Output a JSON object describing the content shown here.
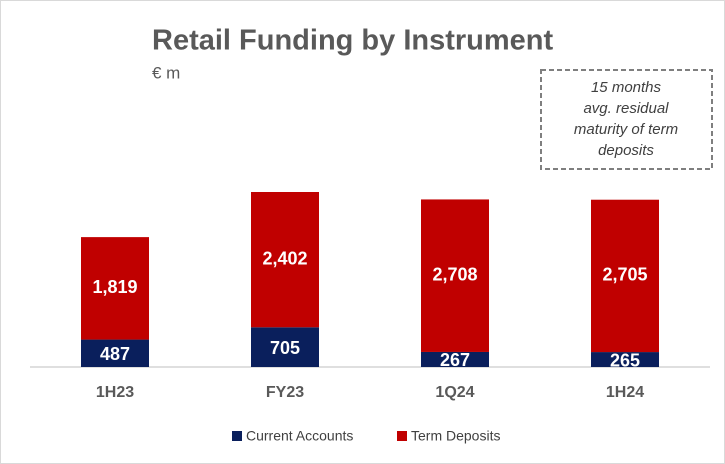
{
  "chart_data": {
    "type": "stacked_bar",
    "title": "Retail Funding by Instrument",
    "subtitle": "€ m",
    "annotation": [
      "15 months",
      "avg. residual",
      "maturity of term",
      "deposits"
    ],
    "categories": [
      "1H23",
      "FY23",
      "1Q24",
      "1H24"
    ],
    "series": [
      {
        "name": "Current Accounts",
        "color": "#0a1f5c",
        "values": [
          487,
          705,
          267,
          265
        ],
        "value_labels": [
          "487",
          "705",
          "267",
          "265"
        ]
      },
      {
        "name": "Term Deposits",
        "color": "#c00000",
        "values": [
          1819,
          2402,
          2708,
          2705
        ],
        "value_labels": [
          "1,819",
          "2,402",
          "2,708",
          "2,705"
        ]
      }
    ]
  }
}
